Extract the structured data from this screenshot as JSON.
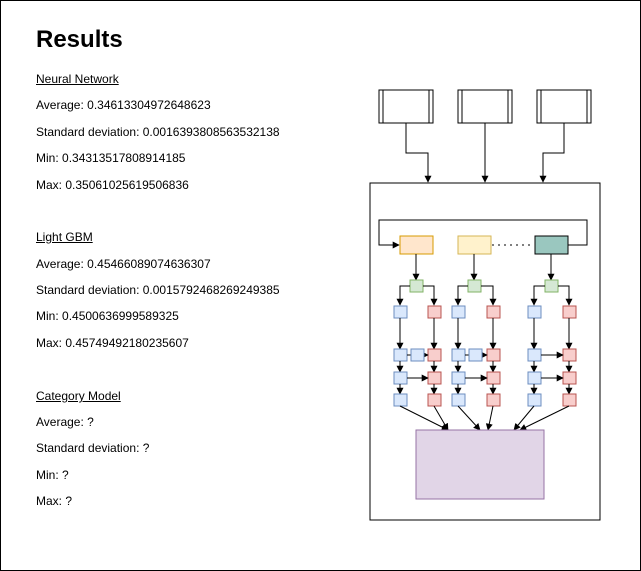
{
  "title": "Results",
  "sections": [
    {
      "heading": "Neural Network",
      "stats": [
        {
          "label": "Average: ",
          "value": "0.34613304972648623"
        },
        {
          "label": "Standard deviation: ",
          "value": "0.0016393808563532138"
        },
        {
          "label": "Min: ",
          "value": "0.34313517808914185"
        },
        {
          "label": "Max: ",
          "value": "0.35061025619506836"
        }
      ]
    },
    {
      "heading": "Light GBM",
      "stats": [
        {
          "label": "Average: ",
          "value": "0.45466089074636307"
        },
        {
          "label": "Standard deviation: ",
          "value": "0.0015792468269249385"
        },
        {
          "label": "Min: ",
          "value": "0.4500636999589325"
        },
        {
          "label": "Max: ",
          "value": "0.45749492180235607"
        }
      ]
    },
    {
      "heading": "Category Model",
      "stats": [
        {
          "label": "Average: ",
          "value": "?"
        },
        {
          "label": "Standard deviation: ",
          "value": "?"
        },
        {
          "label": "Min: ",
          "value": "?"
        },
        {
          "label": "Max: ",
          "value": "?"
        }
      ]
    }
  ],
  "diagram": {
    "colors": {
      "stroke": "#000000",
      "orange_fill": "#ffe6cc",
      "orange_stroke": "#d79b00",
      "yellow_fill": "#fff2cc",
      "yellow_stroke": "#d6b656",
      "teal_fill": "#9ac7bf",
      "teal_stroke": "#000000",
      "green_fill": "#d5e8d4",
      "green_stroke": "#82b366",
      "blue_fill": "#dae8fc",
      "blue_stroke": "#6c8ebf",
      "red_fill": "#f8cecc",
      "red_stroke": "#b85450",
      "purple_fill": "#e1d5e7",
      "purple_stroke": "#9673a6"
    }
  }
}
